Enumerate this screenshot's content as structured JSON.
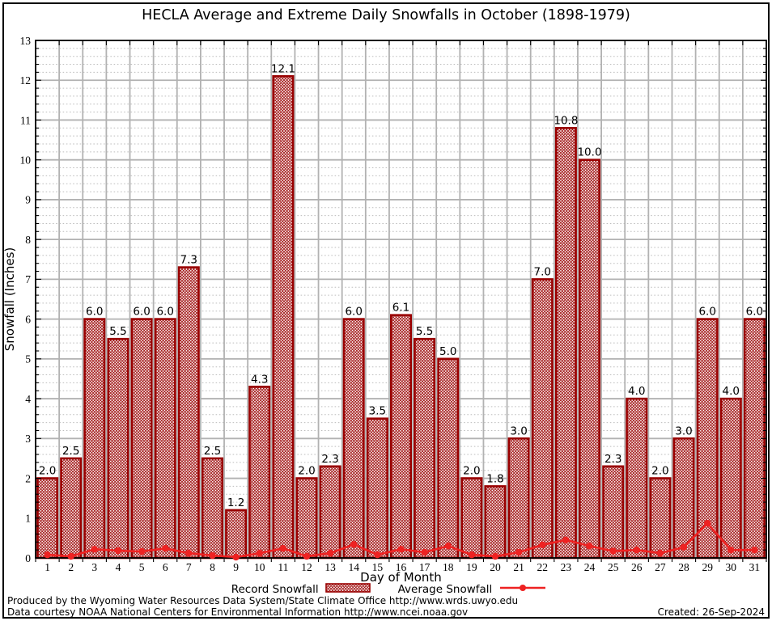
{
  "title": "HECLA Average and Extreme Daily Snowfalls in October (1898-1979)",
  "chart_data": {
    "type": "bar",
    "title": "HECLA Average and Extreme Daily Snowfalls in October (1898-1979)",
    "xlabel": "Day of Month",
    "ylabel": "Snowfall (Inches)",
    "ylim": [
      0,
      13
    ],
    "y_major_step": 1,
    "y_minor_step": 0.2,
    "grid": {
      "major_color": "#b2b2b2",
      "minor_color": "#bdbdbd",
      "minor_style": "dotted"
    },
    "legend_position": "bottom",
    "categories": [
      1,
      2,
      3,
      4,
      5,
      6,
      7,
      8,
      9,
      10,
      11,
      12,
      13,
      14,
      15,
      16,
      17,
      18,
      19,
      20,
      21,
      22,
      23,
      24,
      25,
      26,
      27,
      28,
      29,
      30,
      31
    ],
    "series": [
      {
        "name": "Record Snowfall",
        "type": "bar",
        "color": "#990000",
        "fill_pattern": "crosshatch",
        "data_labels": true,
        "values": [
          2.0,
          2.5,
          6.0,
          5.5,
          6.0,
          6.0,
          7.3,
          2.5,
          1.2,
          4.3,
          12.1,
          2.0,
          2.3,
          6.0,
          3.5,
          6.1,
          5.5,
          5.0,
          2.0,
          1.8,
          3.0,
          7.0,
          10.8,
          10.0,
          2.3,
          4.0,
          2.0,
          3.0,
          6.0,
          4.0,
          6.0
        ]
      },
      {
        "name": "Average Snowfall",
        "type": "line",
        "color": "#ee2222",
        "marker": "circle",
        "values": [
          0.08,
          0.04,
          0.22,
          0.18,
          0.16,
          0.24,
          0.12,
          0.06,
          0.02,
          0.12,
          0.24,
          0.04,
          0.12,
          0.34,
          0.08,
          0.22,
          0.14,
          0.3,
          0.08,
          0.04,
          0.14,
          0.33,
          0.45,
          0.3,
          0.17,
          0.2,
          0.12,
          0.27,
          0.87,
          0.2,
          0.2
        ]
      }
    ]
  },
  "footer": {
    "line1": "Produced by the Wyoming Water Resources Data System/State Climate Office http://www.wrds.uwyo.edu",
    "line2": "Data courtesy NOAA National Centers for Environmental Information http://www.ncei.noaa.gov",
    "created": "Created: 26-Sep-2024"
  }
}
